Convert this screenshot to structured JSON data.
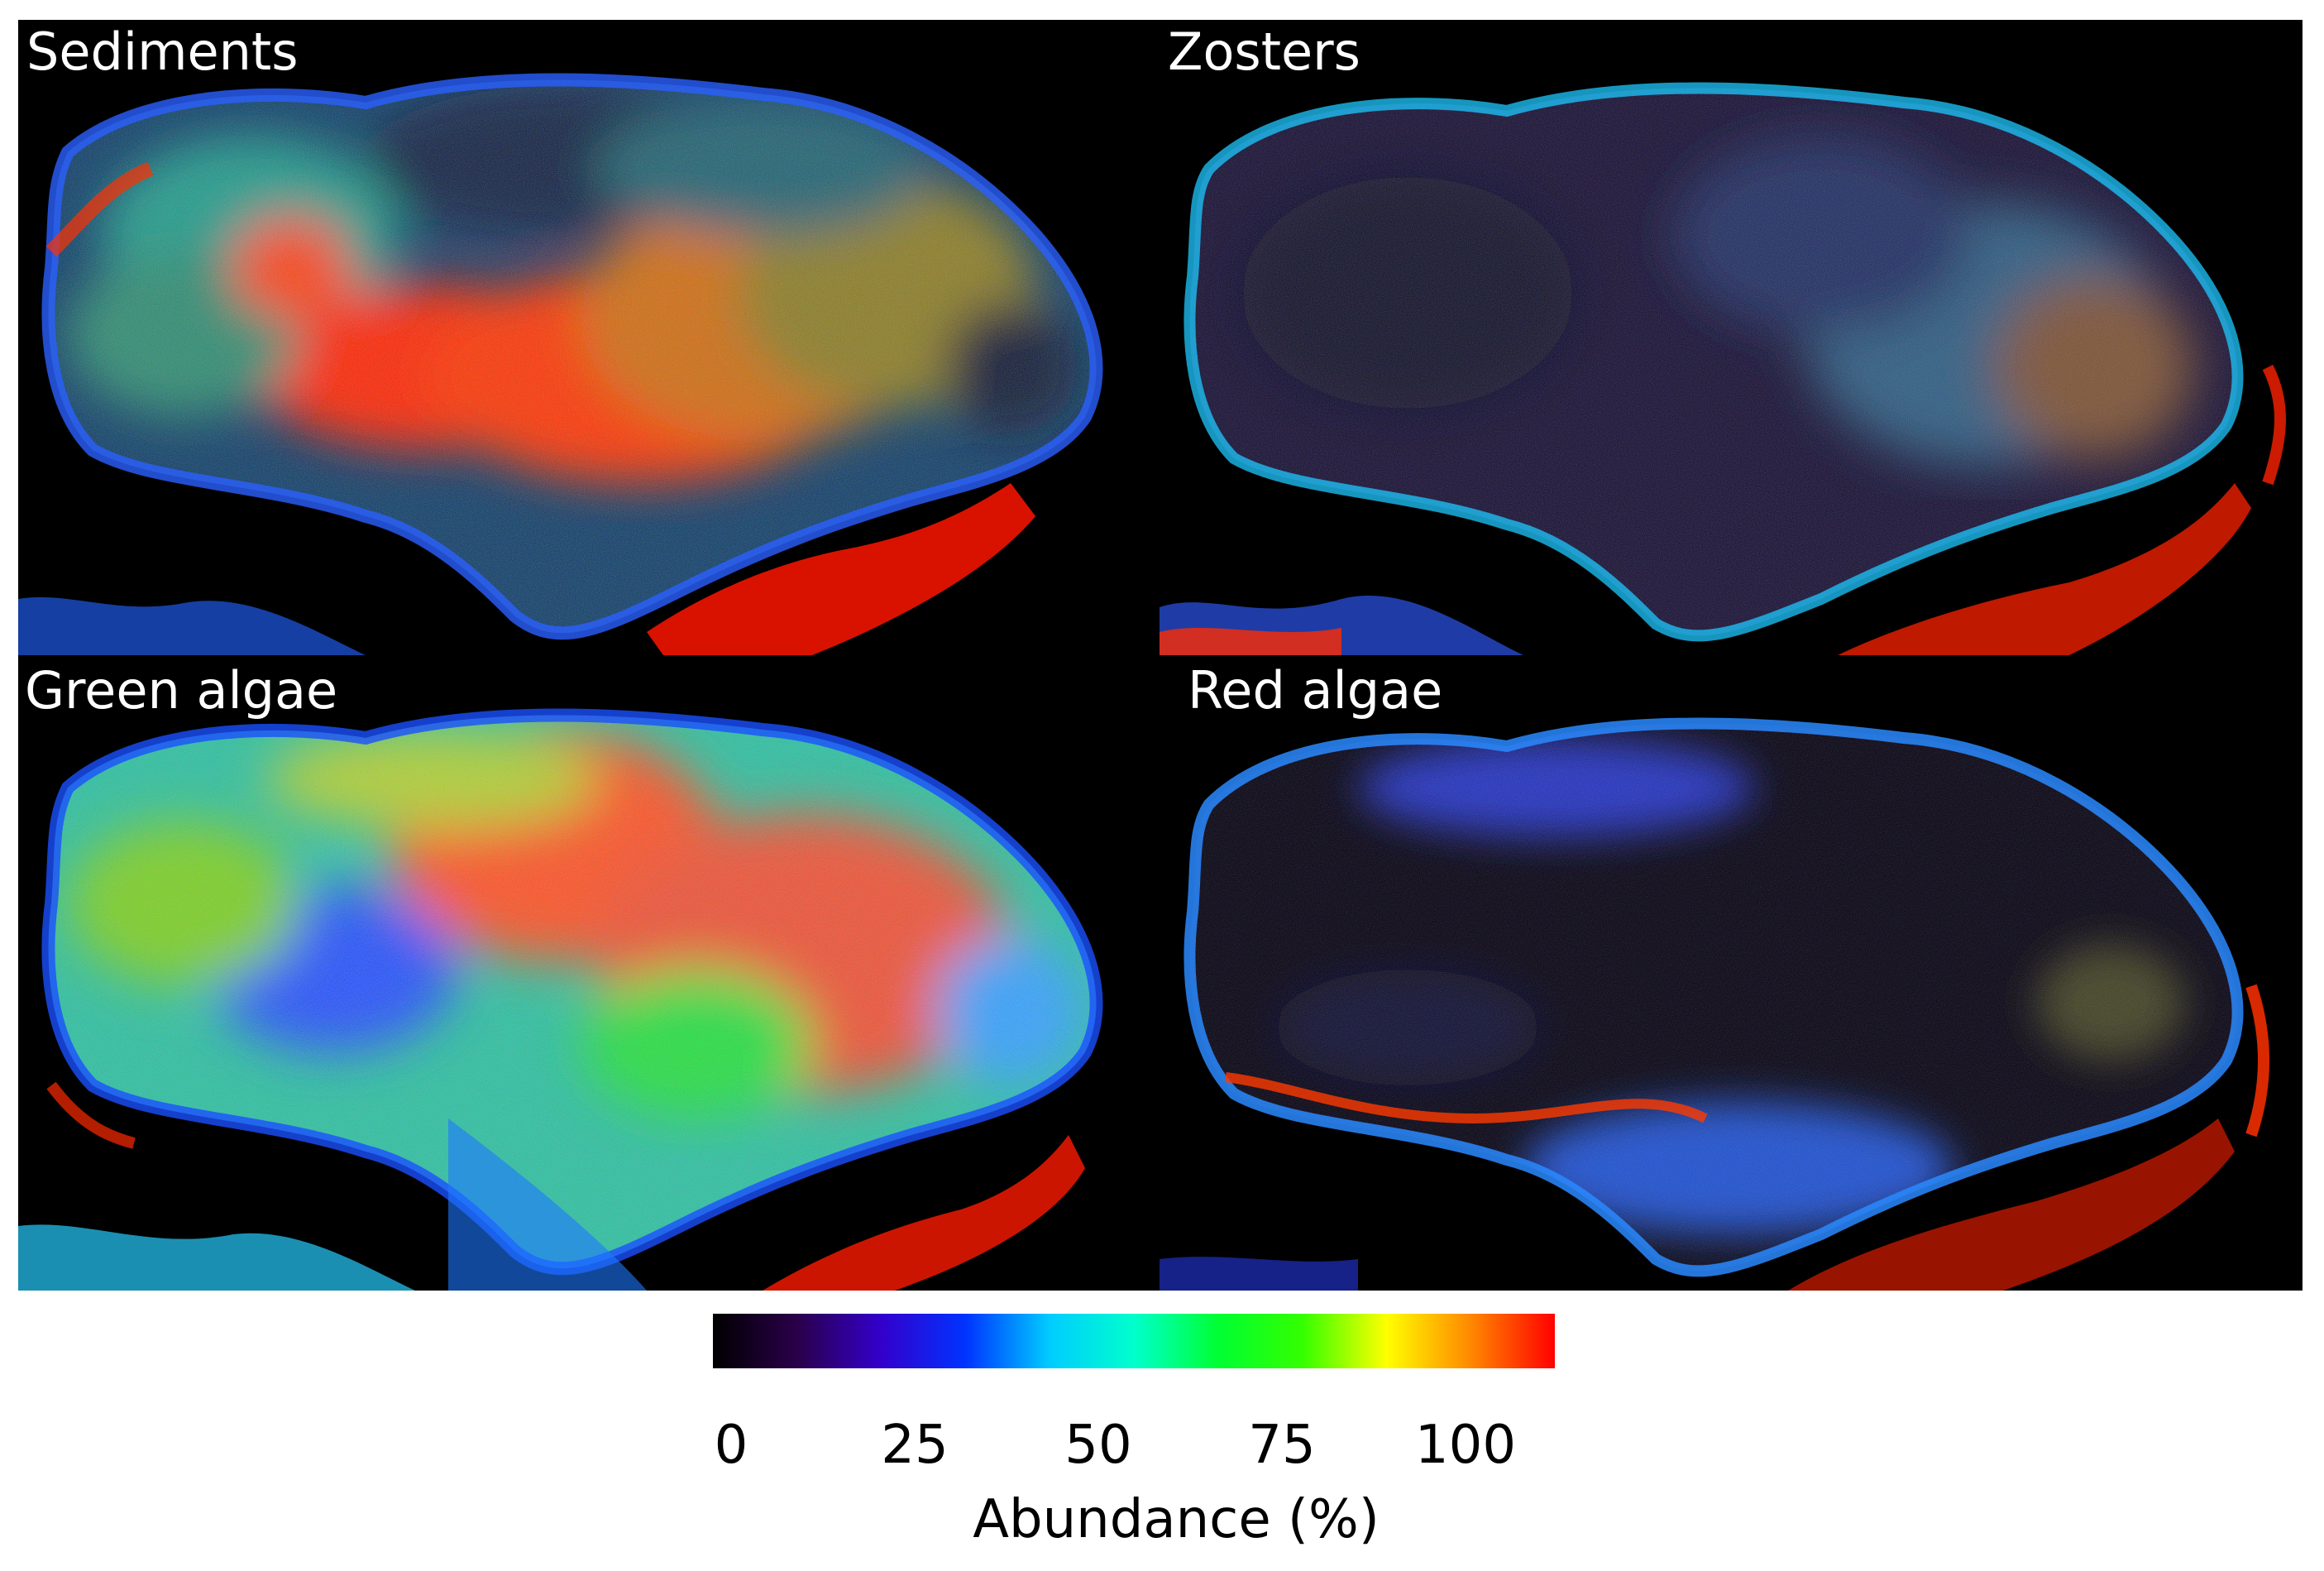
{
  "panels": [
    {
      "id": "sediments",
      "title": "Sediments"
    },
    {
      "id": "zosters",
      "title": "Zosters"
    },
    {
      "id": "green",
      "title": "Green algae"
    },
    {
      "id": "red",
      "title": "Red algae"
    }
  ],
  "colorbar": {
    "label": "Abundance (%)",
    "ticks": [
      "0",
      "25",
      "50",
      "75",
      "100"
    ],
    "tick_values": [
      0,
      25,
      50,
      75,
      100
    ],
    "range": [
      0,
      100
    ],
    "colors": [
      "#000000",
      "#2a004a",
      "#3300cc",
      "#0033ff",
      "#00ccff",
      "#00ffcc",
      "#00ff33",
      "#33ff00",
      "#ffff00",
      "#ff8800",
      "#ff0000"
    ]
  }
}
